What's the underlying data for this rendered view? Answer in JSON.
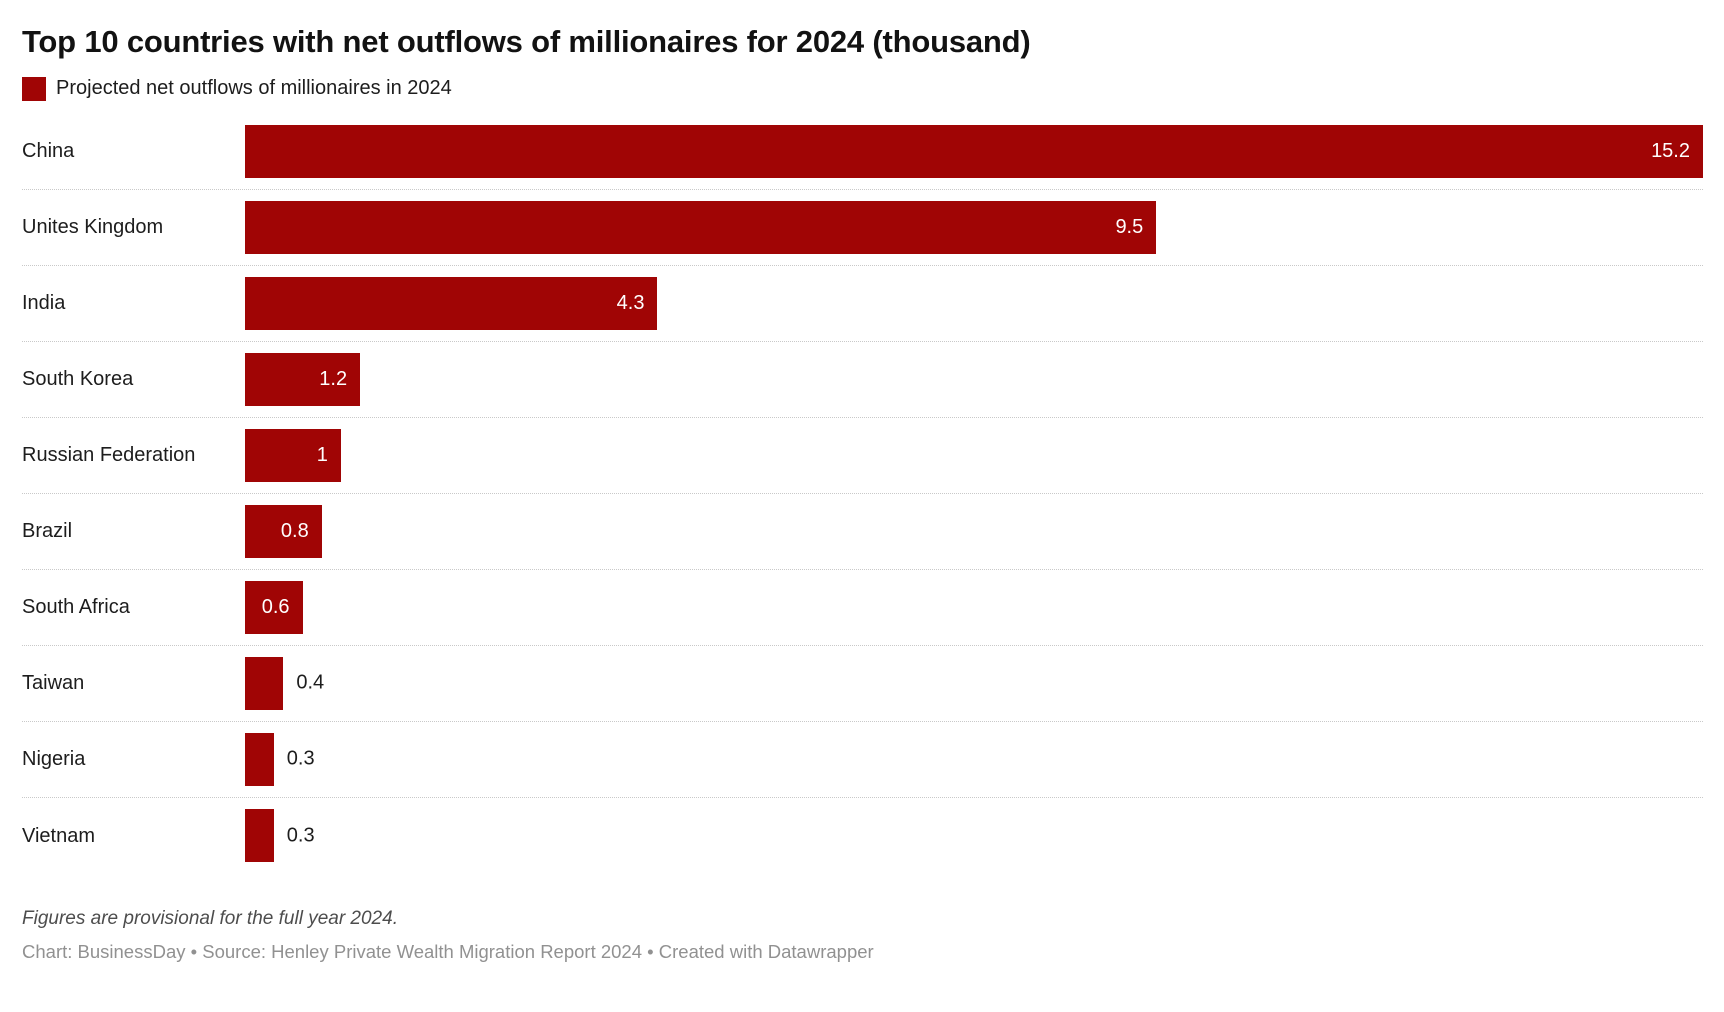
{
  "header": {
    "title": "Top 10 countries with net outflows of millionaires for 2024 (thousand)"
  },
  "legend": {
    "label": "Projected net outflows of millionaires in 2024",
    "swatch_color": "#a00505"
  },
  "chart_data": {
    "type": "bar",
    "orientation": "horizontal",
    "title": "Top 10 countries with net outflows of millionaires for 2024 (thousand)",
    "series_name": "Projected net outflows of millionaires in 2024",
    "categories": [
      "China",
      "Unites Kingdom",
      "India",
      "South Korea",
      "Russian Federation",
      "Brazil",
      "South Africa",
      "Taiwan",
      "Nigeria",
      "Vietnam"
    ],
    "values": [
      15.2,
      9.5,
      4.3,
      1.2,
      1,
      0.8,
      0.6,
      0.4,
      0.3,
      0.3
    ],
    "value_labels": [
      "15.2",
      "9.5",
      "4.3",
      "1.2",
      "1",
      "0.8",
      "0.6",
      "0.4",
      "0.3",
      "0.3"
    ],
    "label_inside": [
      true,
      true,
      true,
      true,
      true,
      true,
      true,
      false,
      false,
      false
    ],
    "xlim": [
      0,
      15.2
    ],
    "bar_color": "#a00505",
    "grid": false,
    "row_separator": "dotted",
    "legend_position": "top-left"
  },
  "footer": {
    "note": "Figures are provisional for the full year 2024.",
    "credit": "Chart: BusinessDay • Source: Henley Private Wealth Migration Report 2024 • Created with Datawrapper"
  }
}
